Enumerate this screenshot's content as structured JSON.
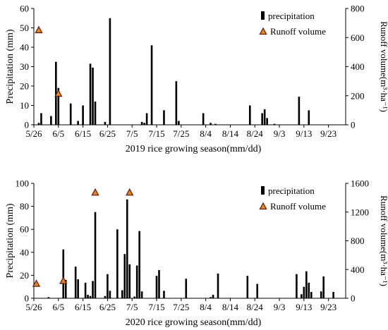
{
  "chart_data": [
    {
      "type": "bar",
      "xlabel": "2019 rice growing season(mm/dd)",
      "ylabel": "Precipitation (mm)",
      "y2label": "Runoff volume(m³·ha⁻¹)",
      "x_ticks": [
        "5/26",
        "6/5",
        "6/15",
        "6/25",
        "7/5",
        "7/15",
        "7/25",
        "8/4",
        "8/14",
        "8/24",
        "9/3",
        "9/13",
        "9/23"
      ],
      "ylim": [
        0,
        60
      ],
      "y_ticks": [
        0,
        10,
        20,
        30,
        40,
        50,
        60
      ],
      "y2lim": [
        0,
        800
      ],
      "y2_ticks": [
        0,
        200,
        400,
        600,
        800
      ],
      "legend": [
        "precipitation",
        "Runoff volume"
      ],
      "legend_position": "top-right",
      "precipitation": [
        {
          "date": "5/28",
          "value": 1
        },
        {
          "date": "5/29",
          "value": 6
        },
        {
          "date": "6/2",
          "value": 4.5
        },
        {
          "date": "6/4",
          "value": 32.5
        },
        {
          "date": "6/5",
          "value": 19
        },
        {
          "date": "6/10",
          "value": 11
        },
        {
          "date": "6/13",
          "value": 2
        },
        {
          "date": "6/15",
          "value": 10
        },
        {
          "date": "6/18",
          "value": 31.5
        },
        {
          "date": "6/19",
          "value": 29.5
        },
        {
          "date": "6/20",
          "value": 12
        },
        {
          "date": "6/24",
          "value": 1.5
        },
        {
          "date": "6/26",
          "value": 55
        },
        {
          "date": "7/9",
          "value": 1.5
        },
        {
          "date": "7/10",
          "value": 1
        },
        {
          "date": "7/11",
          "value": 6
        },
        {
          "date": "7/13",
          "value": 41
        },
        {
          "date": "7/18",
          "value": 7.5
        },
        {
          "date": "7/23",
          "value": 22.5
        },
        {
          "date": "7/24",
          "value": 2
        },
        {
          "date": "8/3",
          "value": 6
        },
        {
          "date": "8/6",
          "value": 1
        },
        {
          "date": "8/8",
          "value": 0.5
        },
        {
          "date": "8/22",
          "value": 10
        },
        {
          "date": "8/27",
          "value": 6
        },
        {
          "date": "8/28",
          "value": 8
        },
        {
          "date": "8/29",
          "value": 3.5
        },
        {
          "date": "9/1",
          "value": 0.5
        },
        {
          "date": "9/11",
          "value": 14.5
        },
        {
          "date": "9/15",
          "value": 7.5
        }
      ],
      "runoff_volume": [
        {
          "date": "5/28",
          "value": 650
        },
        {
          "date": "6/5",
          "value": 213
        }
      ]
    },
    {
      "type": "bar",
      "xlabel": "2020 rice growing season(mm/dd)",
      "ylabel": "Precipitation (mm)",
      "y2label": "Runoff volume(m³·ha⁻¹)",
      "x_ticks": [
        "5/26",
        "6/5",
        "6/15",
        "6/25",
        "7/5",
        "7/15",
        "7/25",
        "8/4",
        "8/14",
        "8/24",
        "9/3",
        "9/13",
        "9/23"
      ],
      "ylim": [
        0,
        100
      ],
      "y_ticks": [
        0,
        20,
        40,
        60,
        80,
        100
      ],
      "y2lim": [
        0,
        1600
      ],
      "y2_ticks": [
        0,
        400,
        800,
        1200,
        1600
      ],
      "legend": [
        "precipitation",
        "Runoff volume"
      ],
      "legend_position": "top-right",
      "precipitation": [
        {
          "date": "6/1",
          "value": 1
        },
        {
          "date": "6/7",
          "value": 42.5
        },
        {
          "date": "6/8",
          "value": 16
        },
        {
          "date": "6/12",
          "value": 27.5
        },
        {
          "date": "6/13",
          "value": 16.5
        },
        {
          "date": "6/16",
          "value": 13.5
        },
        {
          "date": "6/17",
          "value": 3
        },
        {
          "date": "6/18",
          "value": 2
        },
        {
          "date": "6/19",
          "value": 15
        },
        {
          "date": "6/20",
          "value": 75
        },
        {
          "date": "6/24",
          "value": 2
        },
        {
          "date": "6/25",
          "value": 21
        },
        {
          "date": "6/26",
          "value": 6.5
        },
        {
          "date": "6/29",
          "value": 60
        },
        {
          "date": "7/1",
          "value": 7
        },
        {
          "date": "7/2",
          "value": 38.5
        },
        {
          "date": "7/3",
          "value": 86
        },
        {
          "date": "7/4",
          "value": 29.5
        },
        {
          "date": "7/6",
          "value": 1.5
        },
        {
          "date": "7/7",
          "value": 28.5
        },
        {
          "date": "7/8",
          "value": 58.5
        },
        {
          "date": "7/9",
          "value": 6
        },
        {
          "date": "7/15",
          "value": 19.5
        },
        {
          "date": "7/16",
          "value": 24.5
        },
        {
          "date": "7/18",
          "value": 6.5
        },
        {
          "date": "7/27",
          "value": 17
        },
        {
          "date": "8/6",
          "value": 1
        },
        {
          "date": "8/7",
          "value": 3
        },
        {
          "date": "8/9",
          "value": 21.5
        },
        {
          "date": "8/21",
          "value": 19.5
        },
        {
          "date": "8/25",
          "value": 12.5
        },
        {
          "date": "9/10",
          "value": 21
        },
        {
          "date": "9/12",
          "value": 3.5
        },
        {
          "date": "9/13",
          "value": 10
        },
        {
          "date": "9/14",
          "value": 23.5
        },
        {
          "date": "9/15",
          "value": 13.5
        },
        {
          "date": "9/16",
          "value": 5.5
        },
        {
          "date": "9/20",
          "value": 6
        },
        {
          "date": "9/21",
          "value": 19
        },
        {
          "date": "9/25",
          "value": 5.5
        }
      ],
      "runoff_volume": [
        {
          "date": "5/27",
          "value": 200
        },
        {
          "date": "6/7",
          "value": 240
        },
        {
          "date": "6/20",
          "value": 1470
        },
        {
          "date": "7/4",
          "value": 1470
        }
      ]
    }
  ]
}
